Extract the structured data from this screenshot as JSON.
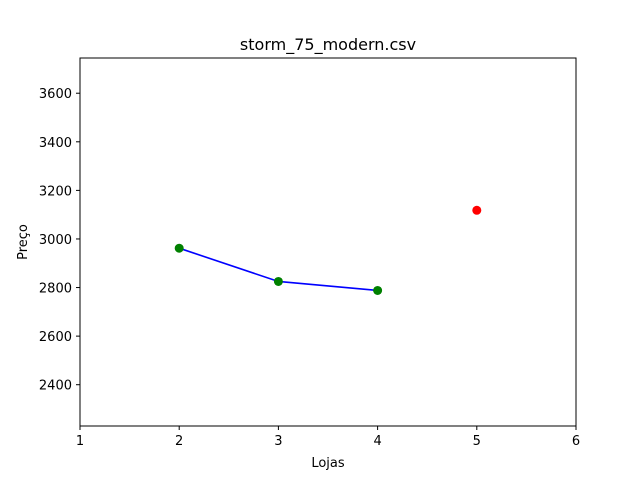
{
  "chart_data": {
    "type": "scatter",
    "title": "storm_75_modern.csv",
    "xlabel": "Lojas",
    "ylabel": "Preço",
    "xlim": [
      1,
      6
    ],
    "ylim": [
      2230,
      3745
    ],
    "xticks": [
      1,
      2,
      3,
      4,
      5,
      6
    ],
    "yticks": [
      2400,
      2600,
      2800,
      3000,
      3200,
      3400,
      3600
    ],
    "grid": false,
    "series": [
      {
        "style": "line-with-markers",
        "line_color": "#0000ff",
        "marker_color": "#008000",
        "points": [
          {
            "x": 2,
            "y": 2962
          },
          {
            "x": 3,
            "y": 2825
          },
          {
            "x": 4,
            "y": 2788
          }
        ]
      },
      {
        "style": "markers",
        "marker_color": "#ff0000",
        "points": [
          {
            "x": 5,
            "y": 3118
          }
        ]
      }
    ]
  }
}
